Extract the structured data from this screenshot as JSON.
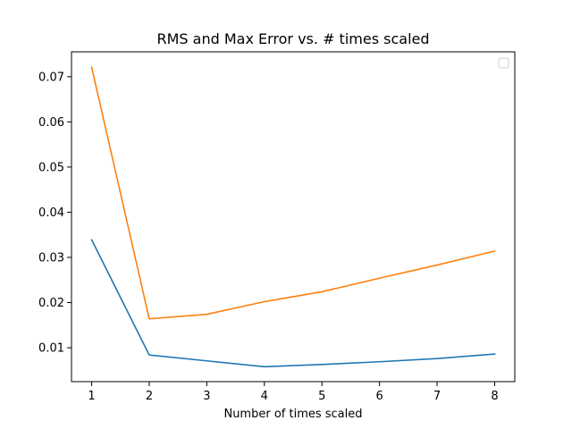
{
  "chart_data": {
    "type": "line",
    "title": "RMS and Max Error vs. # times scaled",
    "xlabel": "Number of times scaled",
    "ylabel": "",
    "x": [
      1,
      2,
      3,
      4,
      5,
      6,
      7,
      8
    ],
    "xlim": [
      0.65,
      8.35
    ],
    "ylim": [
      0.0025,
      0.0755
    ],
    "xticks": [
      1,
      2,
      3,
      4,
      5,
      6,
      7,
      8
    ],
    "yticks": [
      0.01,
      0.02,
      0.03,
      0.04,
      0.05,
      0.06,
      0.07
    ],
    "ytick_labels": [
      "0.01",
      "0.02",
      "0.03",
      "0.04",
      "0.05",
      "0.06",
      "0.07"
    ],
    "grid": false,
    "legend": {
      "placement": "top-right",
      "entries": []
    },
    "series": [
      {
        "color": "#1f77b4",
        "values": [
          0.0339,
          0.0084,
          0.0071,
          0.0058,
          0.0063,
          0.0069,
          0.0076,
          0.0086
        ]
      },
      {
        "color": "#ff7f0e",
        "values": [
          0.0721,
          0.0164,
          0.0174,
          0.0202,
          0.0224,
          0.0254,
          0.0283,
          0.0314
        ]
      }
    ]
  }
}
